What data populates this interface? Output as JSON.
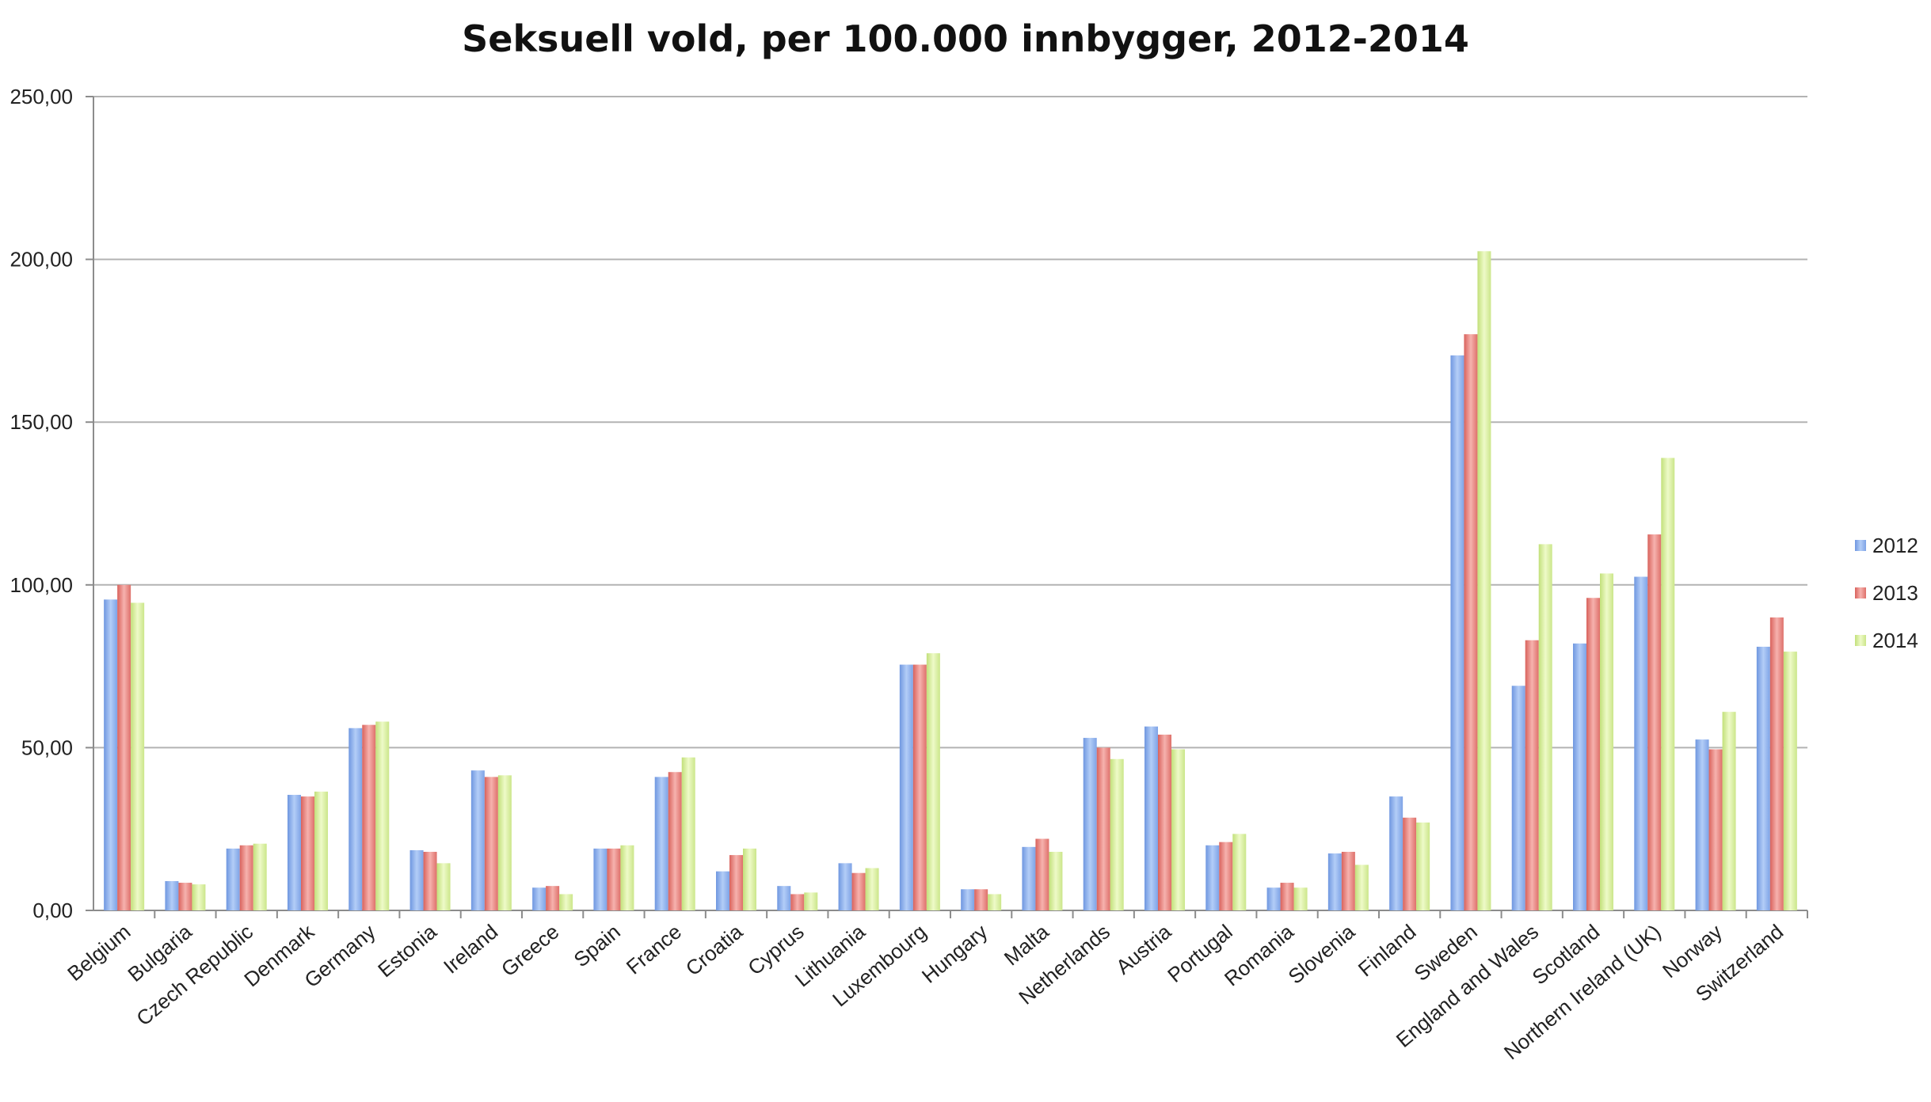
{
  "chart_data": {
    "type": "bar",
    "title": "Seksuell vold, per 100.000 innbygger, 2012-2014",
    "xlabel": "",
    "ylabel": "",
    "ylim": [
      0,
      250
    ],
    "yticks": [
      "0,00",
      "50,00",
      "100,00",
      "150,00",
      "200,00",
      "250,00"
    ],
    "grid": true,
    "legend_position": "right",
    "categories": [
      "Belgium",
      "Bulgaria",
      "Czech Republic",
      "Denmark",
      "Germany",
      "Estonia",
      "Ireland",
      "Greece",
      "Spain",
      "France",
      "Croatia",
      "Cyprus",
      "Lithuania",
      "Luxembourg",
      "Hungary",
      "Malta",
      "Netherlands",
      "Austria",
      "Portugal",
      "Romania",
      "Slovenia",
      "Finland",
      "Sweden",
      "England and Wales",
      "Scotland",
      "Northern Ireland (UK)",
      "Norway",
      "Switzerland"
    ],
    "series": [
      {
        "name": "2012",
        "color": "#8fb0ea",
        "values": [
          95.5,
          9,
          19,
          35.5,
          56,
          18.5,
          43,
          7,
          19,
          41,
          12,
          7.5,
          14.5,
          75.5,
          6.5,
          19.5,
          53,
          56.5,
          20,
          7,
          17.5,
          35,
          170.5,
          69,
          82,
          102.5,
          52.5,
          81
        ]
      },
      {
        "name": "2013",
        "color": "#e98a86",
        "values": [
          100,
          8.5,
          20,
          35,
          57,
          18,
          41,
          7.5,
          19,
          42.5,
          17,
          5,
          11.5,
          75.5,
          6.5,
          22,
          50,
          54,
          21,
          8.5,
          18,
          28.5,
          177,
          83,
          96,
          115.5,
          49.5,
          90
        ]
      },
      {
        "name": "2014",
        "color": "#d6ee9c",
        "values": [
          94.5,
          8,
          20.5,
          36.5,
          58,
          14.5,
          41.5,
          5,
          20,
          47,
          19,
          5.5,
          13,
          79,
          5,
          18,
          46.5,
          49.5,
          23.5,
          7,
          14,
          27,
          202.5,
          112.5,
          103.5,
          139,
          61,
          79.5
        ]
      }
    ]
  }
}
